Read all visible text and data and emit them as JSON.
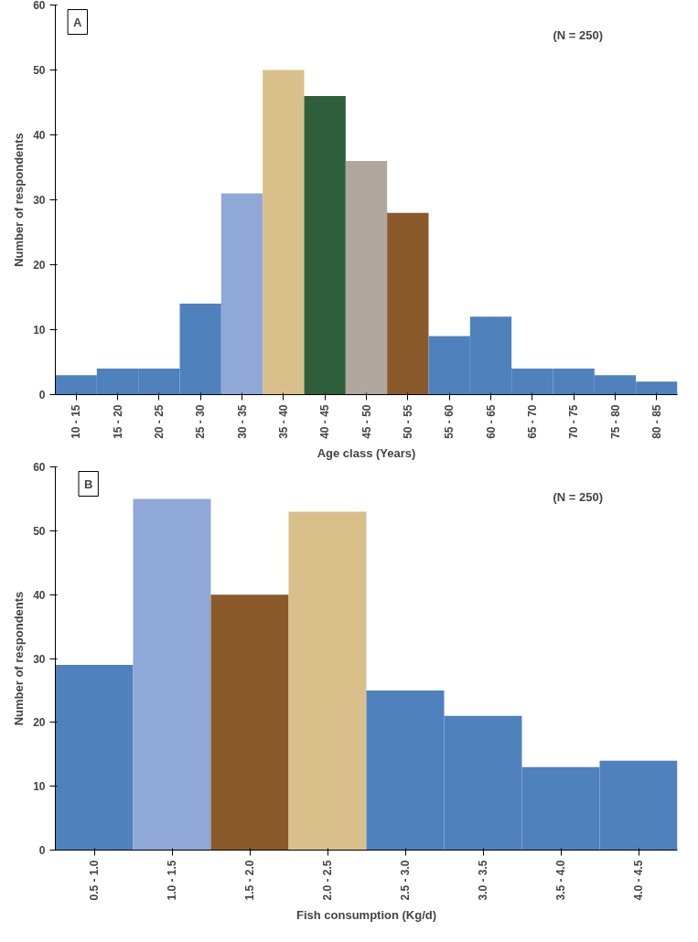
{
  "chart_data": [
    {
      "type": "bar",
      "xlabel": "Age class (Years)",
      "ylabel": "Number of respondents",
      "annotations": [
        "A",
        "(N = 250)"
      ],
      "categories": [
        "10 - 15",
        "15 - 20",
        "20 - 25",
        "25 - 30",
        "30 - 35",
        "35 - 40",
        "40 - 45",
        "45 - 50",
        "50 - 55",
        "55 - 60",
        "60 - 65",
        "65 - 70",
        "70 - 75",
        "75 - 80",
        "80 - 85"
      ],
      "values": [
        3,
        4,
        4,
        14,
        31,
        50,
        46,
        36,
        28,
        9,
        12,
        4,
        4,
        3,
        2
      ],
      "colors": [
        "#4f81bd",
        "#4f81bd",
        "#4f81bd",
        "#4f81bd",
        "#8fa8d8",
        "#d9c08a",
        "#2e5e3a",
        "#b0a8a0",
        "#8b5a2b",
        "#4f81bd",
        "#4f81bd",
        "#4f81bd",
        "#4f81bd",
        "#4f81bd",
        "#4f81bd"
      ],
      "ylim": [
        0,
        60
      ],
      "yticks": [
        0,
        10,
        20,
        30,
        40,
        50,
        60
      ],
      "grid": false
    },
    {
      "type": "bar",
      "xlabel": "Fish consumption (Kg/d)",
      "ylabel": "Number of respondents",
      "annotations": [
        "B",
        "(N = 250)"
      ],
      "categories": [
        "0.5 - 1.0",
        "1.0 - 1.5",
        "1.5 - 2.0",
        "2.0 - 2.5",
        "2.5 - 3.0",
        "3.0 - 3.5",
        "3.5 - 4.0",
        "4.0 - 4.5"
      ],
      "values": [
        29,
        55,
        40,
        53,
        25,
        21,
        13,
        14
      ],
      "colors": [
        "#4f81bd",
        "#8fa8d8",
        "#8b5a2b",
        "#d9c08a",
        "#4f81bd",
        "#4f81bd",
        "#4f81bd",
        "#4f81bd"
      ],
      "ylim": [
        0,
        60
      ],
      "yticks": [
        0,
        10,
        20,
        30,
        40,
        50,
        60
      ],
      "grid": false
    }
  ]
}
